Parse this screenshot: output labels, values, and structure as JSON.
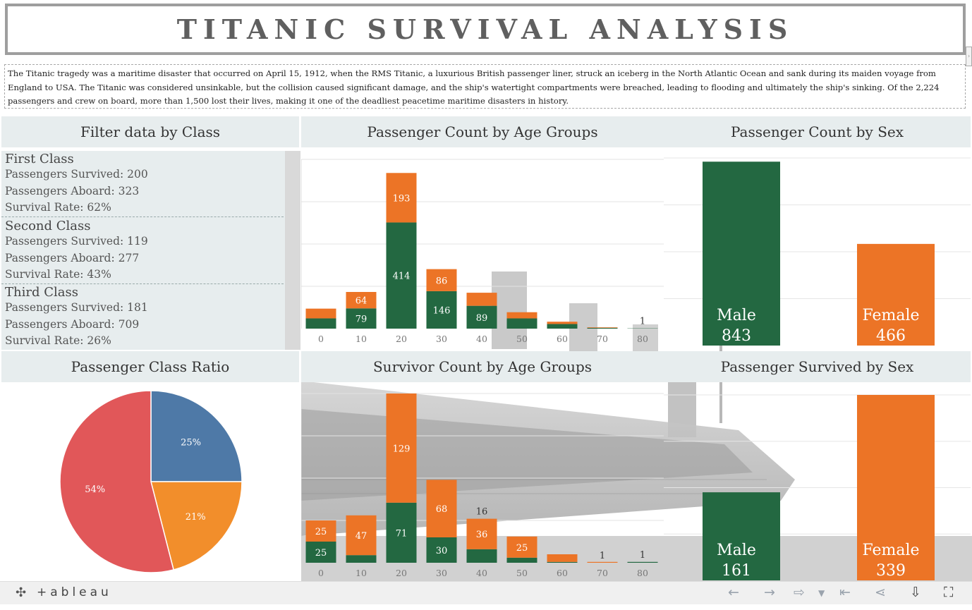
{
  "title": "Titanic Survival Analysis",
  "intro_text": "The Titanic tragedy was a maritime disaster that occurred on April 15, 1912, when the RMS Titanic, a luxurious British passenger liner, struck an iceberg in the North Atlantic Ocean and sank during its maiden voyage from England to USA. The Titanic was considered unsinkable, but the collision caused significant damage, and the ship's watertight compartments were breached, leading to flooding and ultimately the ship's sinking. Of the 2,224 passengers and crew on board, more than 1,500 lost their lives, making it one of the deadliest peacetime maritime disasters in history.",
  "filter_panel": {
    "title": "Filter data by Class",
    "classes": [
      {
        "name": "First Class",
        "survived": "Passengers Survived: 200",
        "aboard": "Passengers Aboard: 323",
        "rate": "Survival Rate: 62%"
      },
      {
        "name": "Second Class",
        "survived": "Passengers Survived: 119",
        "aboard": "Passengers Aboard: 277",
        "rate": "Survival Rate: 43%"
      },
      {
        "name": "Third Class",
        "survived": "Passengers Survived: 181",
        "aboard": "Passengers Aboard: 709",
        "rate": "Survival Rate: 26%"
      }
    ]
  },
  "panel_titles": {
    "age_count": "Passenger Count by Age Groups",
    "sex_count": "Passenger Count by Sex",
    "class_ratio": "Passenger Class Ratio",
    "survivor_age": "Survivor Count by Age Groups",
    "survived_sex": "Passenger Survived by Sex"
  },
  "colors": {
    "green": "#236841",
    "orange": "#ec7426",
    "blue": "#4e79a7",
    "pie_orange": "#f28e2b",
    "red": "#e15759",
    "header_bg": "#e7edee"
  },
  "chart_data": [
    {
      "id": "age_count",
      "type": "bar",
      "stacked": true,
      "title": "Passenger Count by Age Groups",
      "categories": [
        "0",
        "10",
        "20",
        "30",
        "40",
        "50",
        "60",
        "70",
        "80"
      ],
      "series": [
        {
          "color": "#236841",
          "values": [
            40,
            79,
            414,
            146,
            89,
            40,
            18,
            3,
            1
          ]
        },
        {
          "color": "#ec7426",
          "values": [
            38,
            64,
            193,
            86,
            51,
            24,
            9,
            2,
            0
          ]
        }
      ],
      "value_labels_bottom": [
        "",
        "79",
        "414",
        "146",
        "89",
        "",
        "",
        "",
        "1"
      ],
      "value_labels_top": [
        "",
        "64",
        "193",
        "86",
        "",
        "",
        "",
        "",
        ""
      ],
      "ylim": [
        0,
        660
      ]
    },
    {
      "id": "sex_count",
      "type": "bar",
      "title": "Passenger Count by Sex",
      "categories": [
        "Male",
        "Female"
      ],
      "values": [
        843,
        466
      ],
      "colors": [
        "#236841",
        "#ec7426"
      ],
      "ylim": [
        0,
        860
      ]
    },
    {
      "id": "class_ratio",
      "type": "pie",
      "title": "Passenger Class Ratio",
      "slices": [
        {
          "label": "25%",
          "value": 25,
          "color": "#4e79a7"
        },
        {
          "label": "21%",
          "value": 21,
          "color": "#f28e2b"
        },
        {
          "label": "54%",
          "value": 54,
          "color": "#e15759"
        }
      ]
    },
    {
      "id": "survivor_age",
      "type": "bar",
      "stacked": true,
      "title": "Survivor Count by Age Groups",
      "categories": [
        "0",
        "10",
        "20",
        "30",
        "40",
        "50",
        "60",
        "70",
        "80"
      ],
      "series": [
        {
          "color": "#236841",
          "values": [
            25,
            9,
            71,
            30,
            16,
            6,
            1,
            0,
            1
          ]
        },
        {
          "color": "#ec7426",
          "values": [
            25,
            47,
            129,
            68,
            36,
            25,
            9,
            1,
            0
          ]
        }
      ],
      "value_labels_bottom": [
        "25",
        "",
        "71",
        "30",
        "16",
        "",
        "",
        "",
        "1"
      ],
      "value_labels_top": [
        "25",
        "47",
        "129",
        "68",
        "36",
        "25",
        "",
        "1",
        ""
      ],
      "ylim": [
        0,
        200
      ]
    },
    {
      "id": "survived_sex",
      "type": "bar",
      "title": "Passenger Survived by Sex",
      "categories": [
        "Male",
        "Female"
      ],
      "values": [
        161,
        339
      ],
      "colors": [
        "#236841",
        "#ec7426"
      ],
      "ylim": [
        0,
        339
      ]
    }
  ],
  "footer": {
    "brand": "+ableau",
    "buttons": [
      "undo",
      "redo",
      "revert",
      "reset",
      "share",
      "download",
      "fullscreen"
    ]
  }
}
